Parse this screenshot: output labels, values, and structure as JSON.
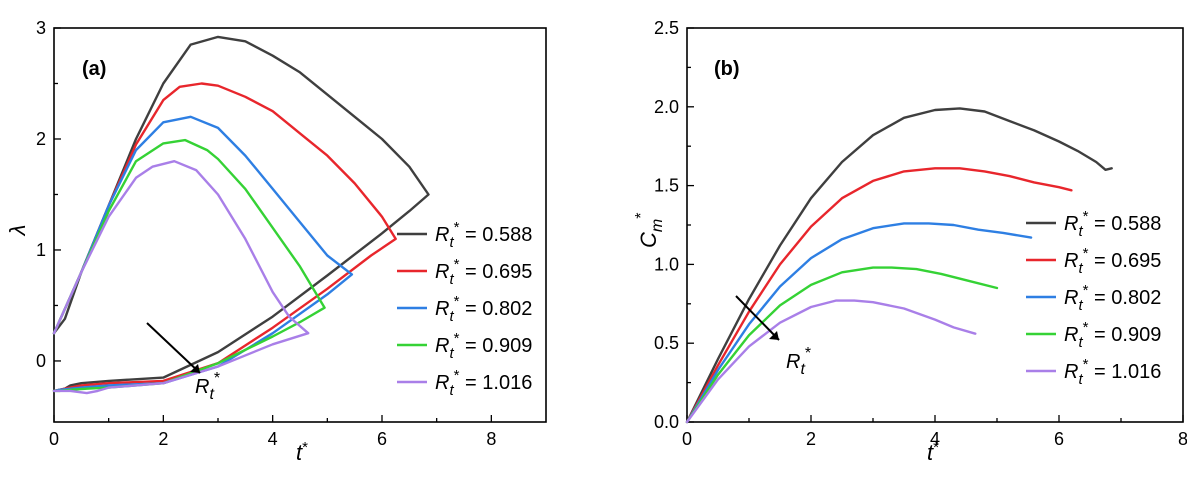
{
  "chart_data": [
    {
      "type": "line",
      "panel": "(a)",
      "xlabel": "t*",
      "ylabel": "λ",
      "xlim": [
        0,
        9
      ],
      "ylim": [
        -0.55,
        3.0
      ],
      "xticks": [
        "0",
        "2",
        "4",
        "6",
        "8"
      ],
      "yticks": [
        "0",
        "1",
        "2",
        "3"
      ],
      "legend_position": "right",
      "annotation": "R_t*",
      "series": [
        {
          "name": "R_t* = 0.588",
          "label_text": "= 0.588",
          "color": "#3f3f3f",
          "x": [
            0,
            0.2,
            0.5,
            1.0,
            1.5,
            2.0,
            2.5,
            3.0,
            3.5,
            4.0,
            4.5,
            5.0,
            5.5,
            6.0,
            6.5,
            6.85,
            6.5,
            6.0,
            5.0,
            4.0,
            3.0,
            2.0,
            1.0,
            0.5,
            0.3,
            0.2,
            0.1,
            0
          ],
          "y": [
            0.25,
            0.38,
            0.8,
            1.4,
            2.0,
            2.5,
            2.85,
            2.92,
            2.88,
            2.75,
            2.6,
            2.4,
            2.2,
            2.0,
            1.75,
            1.5,
            1.35,
            1.15,
            0.77,
            0.4,
            0.08,
            -0.15,
            -0.18,
            -0.2,
            -0.22,
            -0.25,
            -0.26,
            -0.27
          ]
        },
        {
          "name": "R_t* = 0.695",
          "label_text": "= 0.695",
          "color": "#e8262c",
          "x": [
            0,
            0.5,
            1.0,
            1.5,
            2.0,
            2.3,
            2.7,
            3.0,
            3.5,
            4.0,
            4.5,
            5.0,
            5.5,
            6.0,
            6.25,
            5.8,
            5.0,
            4.0,
            3.0,
            2.0,
            1.0,
            0.5,
            0.3,
            0.1,
            0
          ],
          "y": [
            0.25,
            0.8,
            1.4,
            1.95,
            2.35,
            2.47,
            2.5,
            2.48,
            2.38,
            2.25,
            2.05,
            1.85,
            1.6,
            1.3,
            1.1,
            0.95,
            0.65,
            0.3,
            -0.02,
            -0.18,
            -0.2,
            -0.22,
            -0.24,
            -0.26,
            -0.27
          ]
        },
        {
          "name": "R_t* = 0.802",
          "label_text": "= 0.802",
          "color": "#2e7fe3",
          "x": [
            0,
            0.5,
            1.0,
            1.5,
            2.0,
            2.5,
            3.0,
            3.5,
            4.0,
            4.5,
            5.0,
            5.45,
            5.0,
            4.0,
            3.0,
            2.0,
            1.0,
            0.5,
            0.3,
            0.1,
            0
          ],
          "y": [
            0.25,
            0.8,
            1.4,
            1.9,
            2.15,
            2.2,
            2.1,
            1.85,
            1.55,
            1.25,
            0.95,
            0.78,
            0.6,
            0.25,
            -0.05,
            -0.2,
            -0.22,
            -0.24,
            -0.25,
            -0.26,
            -0.27
          ]
        },
        {
          "name": "R_t* = 0.909",
          "label_text": "= 0.909",
          "color": "#35d235",
          "x": [
            0,
            0.5,
            1.0,
            1.5,
            2.0,
            2.4,
            2.8,
            3.0,
            3.5,
            4.0,
            4.5,
            4.95,
            4.5,
            4.0,
            3.0,
            2.0,
            1.0,
            0.6,
            0.3,
            0.1,
            0
          ],
          "y": [
            0.25,
            0.8,
            1.35,
            1.8,
            1.96,
            1.99,
            1.9,
            1.82,
            1.55,
            1.2,
            0.85,
            0.48,
            0.35,
            0.22,
            -0.02,
            -0.2,
            -0.24,
            -0.25,
            -0.26,
            -0.27,
            -0.27
          ]
        },
        {
          "name": "R_t* = 1.016",
          "label_text": "= 1.016",
          "color": "#a97fe8",
          "x": [
            0,
            0.5,
            1.0,
            1.5,
            1.8,
            2.2,
            2.6,
            3.0,
            3.5,
            4.0,
            4.3,
            4.65,
            4.0,
            3.0,
            2.0,
            1.0,
            0.8,
            0.6,
            0.3,
            0.1,
            0
          ],
          "y": [
            0.25,
            0.8,
            1.3,
            1.65,
            1.75,
            1.8,
            1.72,
            1.5,
            1.1,
            0.62,
            0.4,
            0.25,
            0.15,
            -0.05,
            -0.2,
            -0.24,
            -0.27,
            -0.29,
            -0.27,
            -0.27,
            -0.27
          ]
        }
      ]
    },
    {
      "type": "line",
      "panel": "(b)",
      "xlabel": "t*",
      "ylabel": "C_m*",
      "xlim": [
        0,
        8
      ],
      "ylim": [
        0,
        2.5
      ],
      "xticks": [
        "0",
        "2",
        "4",
        "6",
        "8"
      ],
      "yticks": [
        "0.0",
        "0.5",
        "1.0",
        "1.5",
        "2.0",
        "2.5"
      ],
      "legend_position": "right",
      "annotation": "R_t*",
      "series": [
        {
          "name": "R_t* = 0.588",
          "label_text": "= 0.588",
          "color": "#3f3f3f",
          "x": [
            0,
            0.5,
            1.0,
            1.5,
            2.0,
            2.5,
            3.0,
            3.5,
            4.0,
            4.4,
            4.8,
            5.2,
            5.6,
            6.0,
            6.3,
            6.6,
            6.75,
            6.85
          ],
          "y": [
            0,
            0.4,
            0.78,
            1.12,
            1.42,
            1.65,
            1.82,
            1.93,
            1.98,
            1.99,
            1.97,
            1.91,
            1.85,
            1.78,
            1.72,
            1.65,
            1.6,
            1.61
          ]
        },
        {
          "name": "R_t* = 0.695",
          "label_text": "= 0.695",
          "color": "#e8262c",
          "x": [
            0,
            0.5,
            1.0,
            1.5,
            2.0,
            2.5,
            3.0,
            3.5,
            4.0,
            4.4,
            4.8,
            5.2,
            5.6,
            6.0,
            6.2
          ],
          "y": [
            0,
            0.36,
            0.7,
            1.0,
            1.24,
            1.42,
            1.53,
            1.59,
            1.61,
            1.61,
            1.59,
            1.56,
            1.52,
            1.49,
            1.47
          ]
        },
        {
          "name": "R_t* = 0.802",
          "label_text": "= 0.802",
          "color": "#2e7fe3",
          "x": [
            0,
            0.5,
            1.0,
            1.5,
            2.0,
            2.5,
            3.0,
            3.5,
            3.9,
            4.3,
            4.7,
            5.1,
            5.55
          ],
          "y": [
            0,
            0.33,
            0.62,
            0.86,
            1.04,
            1.16,
            1.23,
            1.26,
            1.26,
            1.25,
            1.22,
            1.2,
            1.17
          ]
        },
        {
          "name": "R_t* = 0.909",
          "label_text": "= 0.909",
          "color": "#35d235",
          "x": [
            0,
            0.5,
            1.0,
            1.5,
            2.0,
            2.5,
            3.0,
            3.3,
            3.7,
            4.1,
            4.5,
            5.0
          ],
          "y": [
            0,
            0.3,
            0.55,
            0.74,
            0.87,
            0.95,
            0.98,
            0.98,
            0.97,
            0.94,
            0.9,
            0.85
          ]
        },
        {
          "name": "R_t* = 1.016",
          "label_text": "= 1.016",
          "color": "#a97fe8",
          "x": [
            0,
            0.5,
            1.0,
            1.5,
            2.0,
            2.4,
            2.7,
            3.0,
            3.5,
            4.0,
            4.3,
            4.65
          ],
          "y": [
            0,
            0.27,
            0.48,
            0.63,
            0.73,
            0.77,
            0.77,
            0.76,
            0.72,
            0.65,
            0.6,
            0.56
          ]
        }
      ]
    }
  ]
}
